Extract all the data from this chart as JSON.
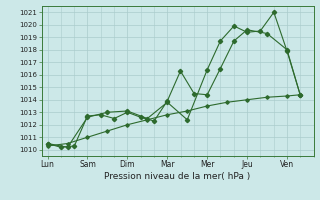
{
  "xlabel": "Pression niveau de la mer( hPa )",
  "days": [
    "Lun",
    "Sam",
    "Dim",
    "Mar",
    "Mer",
    "Jeu",
    "Ven"
  ],
  "ylim": [
    1009.5,
    1021.5
  ],
  "yticks": [
    1010,
    1011,
    1012,
    1013,
    1014,
    1015,
    1016,
    1017,
    1018,
    1019,
    1020,
    1021
  ],
  "line_color": "#2d6a2d",
  "bg_color": "#cce8e8",
  "grid_color": "#aacccc",
  "line1_x": [
    0,
    0.5,
    1.0,
    1.5,
    2.0,
    2.5,
    3.0,
    3.5,
    4.0,
    4.33,
    4.67,
    5.0,
    5.33,
    5.67,
    6.0,
    6.33
  ],
  "line1_y": [
    1010.5,
    1010.2,
    1012.6,
    1013.0,
    1013.1,
    1012.5,
    1013.8,
    1012.4,
    1016.4,
    1018.7,
    1019.9,
    1019.4,
    1019.5,
    1021.0,
    1017.9,
    1014.4
  ],
  "line2_x": [
    0,
    0.33,
    0.67,
    1.0,
    1.33,
    1.67,
    2.0,
    2.33,
    2.67,
    3.0,
    3.33,
    3.67,
    4.0,
    4.33,
    4.67,
    5.0,
    5.5,
    6.0,
    6.33
  ],
  "line2_y": [
    1010.5,
    1010.2,
    1010.3,
    1012.7,
    1012.8,
    1012.5,
    1013.0,
    1012.6,
    1012.3,
    1013.9,
    1016.3,
    1014.5,
    1014.4,
    1016.5,
    1018.7,
    1019.6,
    1019.3,
    1018.0,
    1014.4
  ],
  "line3_x": [
    0,
    0.5,
    1.0,
    1.5,
    2.0,
    2.5,
    3.0,
    3.5,
    4.0,
    4.5,
    5.0,
    5.5,
    6.0,
    6.33
  ],
  "line3_y": [
    1010.3,
    1010.5,
    1011.0,
    1011.5,
    1012.0,
    1012.4,
    1012.8,
    1013.1,
    1013.5,
    1013.8,
    1014.0,
    1014.2,
    1014.3,
    1014.4
  ]
}
